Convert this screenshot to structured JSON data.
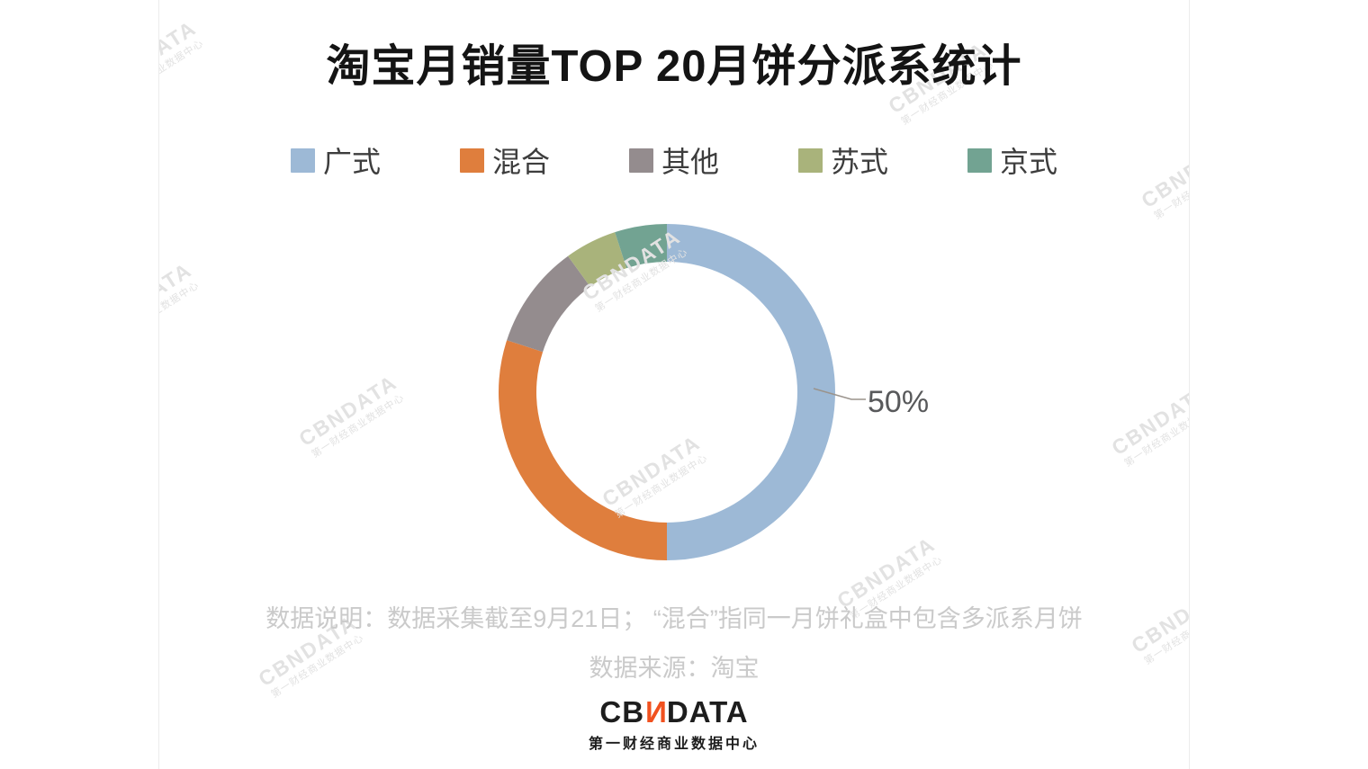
{
  "title": "淘宝月销量TOP 20月饼分派系统计",
  "chart_data": {
    "type": "pie",
    "subtype": "donut",
    "title": "淘宝月销量TOP 20月饼分派系统计",
    "categories": [
      "广式",
      "混合",
      "其他",
      "苏式",
      "京式"
    ],
    "values": [
      50,
      30,
      10,
      5,
      5
    ],
    "unit": "percent",
    "colors": [
      "#9db9d6",
      "#df7e3d",
      "#948c8e",
      "#a9b37b",
      "#72a392"
    ],
    "start_angle": "12-oclock",
    "direction": "clockwise",
    "legend_position": "top",
    "labeled_slice": {
      "category": "广式",
      "label": "50%"
    }
  },
  "notes": {
    "line1": "数据说明：数据采集截至9月21日； “混合”指同一月饼礼盒中包含多派系月饼",
    "line2": "数据来源：淘宝"
  },
  "logo": {
    "prefix": "CB",
    "accent": "N",
    "suffix": "DATA",
    "accent_color": "#f1511f",
    "subtitle": "第一财经商业数据中心"
  },
  "watermark": {
    "brand": "CBNDATA",
    "subtitle": "第一财经商业数据中心"
  }
}
